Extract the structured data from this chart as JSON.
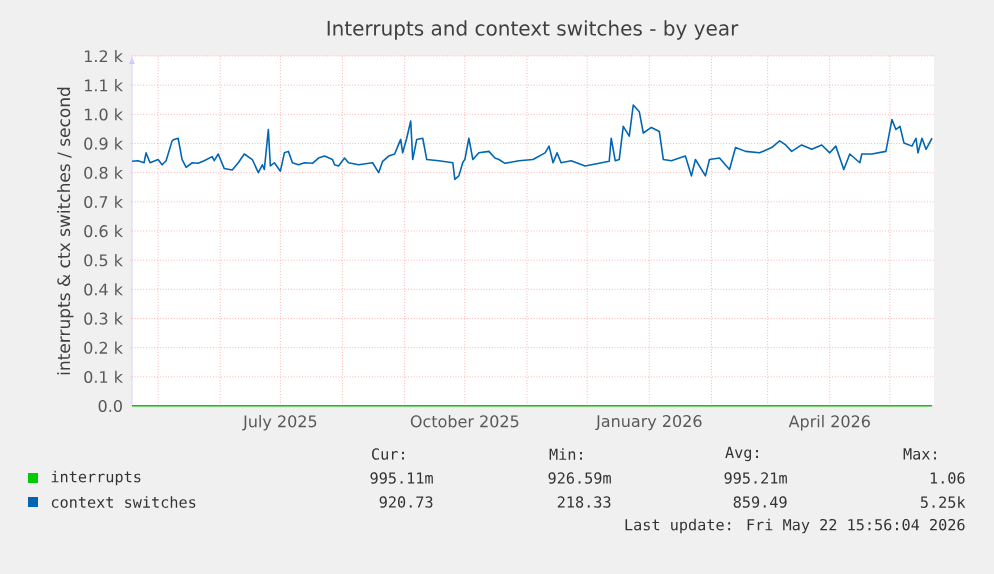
{
  "chart_data": {
    "type": "line",
    "title": "Interrupts and context switches - by year",
    "ylabel": "interrupts & ctx switches / second",
    "xlim": [
      "2025-04-18",
      "2026-05-23"
    ],
    "xticks": [
      {
        "value": "2025-05-01",
        "label": null
      },
      {
        "value": "2025-06-01",
        "label": null
      },
      {
        "value": "2025-07-01",
        "label": "July 2025"
      },
      {
        "value": "2025-08-01",
        "label": null
      },
      {
        "value": "2025-09-01",
        "label": null
      },
      {
        "value": "2025-10-01",
        "label": "October 2025"
      },
      {
        "value": "2025-11-01",
        "label": null
      },
      {
        "value": "2025-12-01",
        "label": null
      },
      {
        "value": "2026-01-01",
        "label": "January 2026"
      },
      {
        "value": "2026-02-01",
        "label": null
      },
      {
        "value": "2026-03-01",
        "label": null
      },
      {
        "value": "2026-04-01",
        "label": "April 2026"
      },
      {
        "value": "2026-05-01",
        "label": null
      }
    ],
    "ylim": [
      0,
      1200
    ],
    "yticks": [
      {
        "value": 0,
        "label": "0.0"
      },
      {
        "value": 100,
        "label": "0.1 k"
      },
      {
        "value": 200,
        "label": "0.2 k"
      },
      {
        "value": 300,
        "label": "0.3 k"
      },
      {
        "value": 400,
        "label": "0.4 k"
      },
      {
        "value": 500,
        "label": "0.5 k"
      },
      {
        "value": 600,
        "label": "0.6 k"
      },
      {
        "value": 700,
        "label": "0.7 k"
      },
      {
        "value": 800,
        "label": "0.8 k"
      },
      {
        "value": 900,
        "label": "0.9 k"
      },
      {
        "value": 1000,
        "label": "1.0 k"
      },
      {
        "value": 1100,
        "label": "1.1 k"
      },
      {
        "value": 1200,
        "label": "1.2 k"
      }
    ],
    "grid": true,
    "legend": "bottom",
    "marker": "none",
    "line_style": "solid",
    "series": [
      {
        "name": "interrupts",
        "color": "#00cc00",
        "x": [
          "2025-04-18",
          "2026-05-22"
        ],
        "values": [
          1,
          1
        ]
      },
      {
        "name": "context switches",
        "color": "#0066b3",
        "x": [
          "2025-04-18",
          "2025-04-21",
          "2025-04-24",
          "2025-04-25",
          "2025-04-27",
          "2025-05-01",
          "2025-05-03",
          "2025-05-05",
          "2025-05-08",
          "2025-05-09",
          "2025-05-11",
          "2025-05-13",
          "2025-05-15",
          "2025-05-18",
          "2025-05-21",
          "2025-05-24",
          "2025-05-28",
          "2025-05-29",
          "2025-05-31",
          "2025-06-03",
          "2025-06-07",
          "2025-06-10",
          "2025-06-13",
          "2025-06-17",
          "2025-06-20",
          "2025-06-22",
          "2025-06-23",
          "2025-06-25",
          "2025-06-26",
          "2025-06-28",
          "2025-07-01",
          "2025-07-03",
          "2025-07-05",
          "2025-07-07",
          "2025-07-10",
          "2025-07-13",
          "2025-07-17",
          "2025-07-20",
          "2025-07-23",
          "2025-07-27",
          "2025-07-28",
          "2025-07-30",
          "2025-08-02",
          "2025-08-04",
          "2025-08-09",
          "2025-08-16",
          "2025-08-19",
          "2025-08-21",
          "2025-08-24",
          "2025-08-27",
          "2025-08-30",
          "2025-08-31",
          "2025-09-02",
          "2025-09-04",
          "2025-09-05",
          "2025-09-07",
          "2025-09-10",
          "2025-09-12",
          "2025-09-18",
          "2025-09-25",
          "2025-09-26",
          "2025-09-28",
          "2025-09-30",
          "2025-10-01",
          "2025-10-03",
          "2025-10-05",
          "2025-10-08",
          "2025-10-13",
          "2025-10-16",
          "2025-10-18",
          "2025-10-21",
          "2025-10-28",
          "2025-11-04",
          "2025-11-10",
          "2025-11-12",
          "2025-11-14",
          "2025-11-16",
          "2025-11-18",
          "2025-11-23",
          "2025-11-30",
          "2025-12-07",
          "2025-12-12",
          "2025-12-13",
          "2025-12-15",
          "2025-12-17",
          "2025-12-19",
          "2025-12-22",
          "2025-12-24",
          "2025-12-27",
          "2025-12-29",
          "2026-01-02",
          "2026-01-06",
          "2026-01-08",
          "2026-01-12",
          "2026-01-16",
          "2026-01-19",
          "2026-01-22",
          "2026-01-24",
          "2026-01-29",
          "2026-01-31",
          "2026-02-05",
          "2026-02-10",
          "2026-02-13",
          "2026-02-18",
          "2026-02-25",
          "2026-03-03",
          "2026-03-07",
          "2026-03-10",
          "2026-03-13",
          "2026-03-18",
          "2026-03-23",
          "2026-03-28",
          "2026-04-01",
          "2026-04-04",
          "2026-04-08",
          "2026-04-11",
          "2026-04-16",
          "2026-04-17",
          "2026-04-22",
          "2026-04-29",
          "2026-05-02",
          "2026-05-04",
          "2026-05-06",
          "2026-05-08",
          "2026-05-12",
          "2026-05-14",
          "2026-05-15",
          "2026-05-17",
          "2026-05-19",
          "2026-05-22"
        ],
        "values": [
          839,
          841,
          834,
          868,
          834,
          845,
          827,
          841,
          909,
          914,
          918,
          845,
          818,
          834,
          832,
          841,
          855,
          841,
          864,
          814,
          809,
          834,
          864,
          845,
          800,
          827,
          811,
          948,
          823,
          834,
          805,
          868,
          873,
          834,
          827,
          834,
          832,
          850,
          857,
          845,
          827,
          823,
          850,
          834,
          827,
          834,
          800,
          839,
          857,
          864,
          914,
          868,
          918,
          977,
          845,
          914,
          918,
          845,
          841,
          834,
          777,
          789,
          836,
          845,
          918,
          845,
          868,
          873,
          850,
          845,
          832,
          841,
          845,
          868,
          891,
          834,
          868,
          834,
          841,
          823,
          832,
          839,
          918,
          841,
          845,
          959,
          925,
          1032,
          1009,
          936,
          955,
          941,
          845,
          841,
          850,
          857,
          789,
          845,
          789,
          845,
          850,
          811,
          886,
          873,
          868,
          886,
          909,
          895,
          873,
          895,
          880,
          895,
          868,
          891,
          811,
          864,
          834,
          864,
          864,
          873,
          982,
          948,
          959,
          902,
          891,
          918,
          868,
          918,
          880,
          918
        ]
      }
    ],
    "annotations": [
      "Cur:",
      "Min:",
      "Avg:",
      "Max:",
      "995.11m",
      "926.59m",
      "995.21m",
      "1.06",
      "920.73",
      "218.33",
      "859.49",
      "5.25k",
      "Last update: Fri May 22 15:56:04 2026"
    ]
  }
}
